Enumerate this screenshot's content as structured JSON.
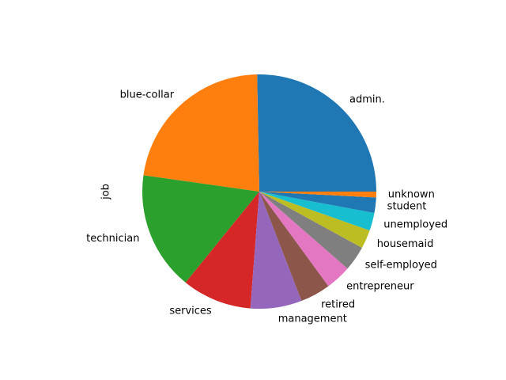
{
  "chart_data": {
    "type": "pie",
    "title": "",
    "ylabel": "job",
    "start_angle_deg": 0,
    "direction": "counterclockwise",
    "legend": "none",
    "categories": [
      "admin.",
      "blue-collar",
      "technician",
      "services",
      "management",
      "retired",
      "entrepreneur",
      "self-employed",
      "housemaid",
      "unemployed",
      "student",
      "unknown"
    ],
    "values": [
      10422,
      9254,
      6743,
      3969,
      2924,
      1720,
      1456,
      1421,
      1060,
      1014,
      875,
      330
    ],
    "colors": [
      "#1f77b4",
      "#ff7f0e",
      "#2ca02c",
      "#d62728",
      "#9467bd",
      "#8c564b",
      "#e377c2",
      "#7f7f7f",
      "#bcbd22",
      "#17becf",
      "#1f77b4",
      "#ff7f0e"
    ]
  }
}
